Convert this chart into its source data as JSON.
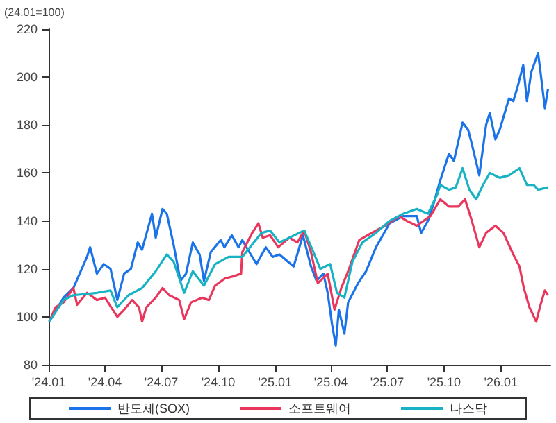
{
  "chart_data": {
    "type": "line",
    "ylabel": "(24.01=100)",
    "xlim": [
      "2024-01-01",
      "2026-03-22"
    ],
    "xticks": [
      {
        "value": "2024-01-01",
        "label": "'24.01"
      },
      {
        "value": "2024-04-01",
        "label": "'24.04"
      },
      {
        "value": "2024-07-01",
        "label": "'24.07"
      },
      {
        "value": "2024-10-01",
        "label": "'24.10"
      },
      {
        "value": "2025-01-01",
        "label": "'25.01"
      },
      {
        "value": "2025-04-01",
        "label": "'25.04"
      },
      {
        "value": "2025-07-01",
        "label": "'25.07"
      },
      {
        "value": "2025-10-01",
        "label": "'25.10"
      },
      {
        "value": "2026-01-01",
        "label": "'26.01"
      }
    ],
    "ylim": [
      80,
      220
    ],
    "yticks": [
      80,
      100,
      120,
      140,
      160,
      180,
      200,
      220
    ],
    "grid": false,
    "legend": "bottom",
    "marker": "none",
    "line_style": "solid",
    "series": [
      {
        "name": "반도체(SOX)",
        "color": "#1a73e8",
        "x": [
          "2024-01-02",
          "2024-01-25",
          "2024-02-10",
          "2024-03-03",
          "2024-03-08",
          "2024-03-19",
          "2024-03-30",
          "2024-04-10",
          "2024-04-21",
          "2024-05-02",
          "2024-05-13",
          "2024-05-24",
          "2024-05-31",
          "2024-06-16",
          "2024-06-22",
          "2024-07-03",
          "2024-07-10",
          "2024-07-21",
          "2024-08-01",
          "2024-08-10",
          "2024-08-21",
          "2024-09-01",
          "2024-09-08",
          "2024-09-19",
          "2024-10-05",
          "2024-10-11",
          "2024-10-23",
          "2024-11-03",
          "2024-11-09",
          "2024-11-18",
          "2024-12-02",
          "2024-12-17",
          "2024-12-28",
          "2025-01-08",
          "2025-01-31",
          "2025-02-15",
          "2025-02-28",
          "2025-03-09",
          "2025-03-20",
          "2025-03-27",
          "2025-04-03",
          "2025-04-09",
          "2025-04-14",
          "2025-04-23",
          "2025-04-29",
          "2025-05-15",
          "2025-05-28",
          "2025-06-13",
          "2025-07-05",
          "2025-07-27",
          "2025-08-18",
          "2025-08-25",
          "2025-09-05",
          "2025-09-14",
          "2025-09-25",
          "2025-10-09",
          "2025-10-17",
          "2025-10-31",
          "2025-11-09",
          "2025-11-15",
          "2025-11-27",
          "2025-12-08",
          "2025-12-14",
          "2025-12-23",
          "2025-12-30",
          "2026-01-14",
          "2026-01-21",
          "2026-01-28",
          "2026-02-06",
          "2026-02-12",
          "2026-02-19",
          "2026-03-02",
          "2026-03-06",
          "2026-03-13",
          "2026-03-18"
        ],
        "values": [
          98,
          108,
          112,
          125,
          129,
          118,
          122,
          120,
          107,
          118,
          120,
          131,
          128,
          143,
          133,
          145,
          143,
          130,
          115,
          118,
          131,
          126,
          115,
          127,
          132,
          129,
          134,
          129,
          132,
          128,
          122,
          129,
          125,
          126,
          121,
          134,
          121,
          115,
          118,
          110,
          97,
          88,
          103,
          93,
          106,
          114,
          119,
          129,
          139,
          142,
          142,
          135,
          140,
          147,
          157,
          168,
          165,
          181,
          178,
          172,
          159,
          180,
          185,
          174,
          178,
          191,
          190,
          196,
          205,
          190,
          202,
          210,
          202,
          187,
          195
        ]
      },
      {
        "name": "소프트웨어",
        "color": "#e8365d",
        "x": [
          "2024-01-02",
          "2024-01-12",
          "2024-01-25",
          "2024-02-10",
          "2024-02-16",
          "2024-03-03",
          "2024-03-19",
          "2024-04-01",
          "2024-04-21",
          "2024-05-02",
          "2024-05-15",
          "2024-05-26",
          "2024-05-31",
          "2024-06-07",
          "2024-06-22",
          "2024-07-03",
          "2024-07-14",
          "2024-07-30",
          "2024-08-07",
          "2024-08-18",
          "2024-09-05",
          "2024-09-16",
          "2024-09-26",
          "2024-10-12",
          "2024-10-27",
          "2024-11-07",
          "2024-11-09",
          "2024-11-25",
          "2024-12-05",
          "2024-12-12",
          "2024-12-24",
          "2025-01-06",
          "2025-01-24",
          "2025-02-06",
          "2025-02-17",
          "2025-02-28",
          "2025-03-11",
          "2025-03-27",
          "2025-04-07",
          "2025-04-18",
          "2025-04-29",
          "2025-05-17",
          "2025-06-06",
          "2025-06-28",
          "2025-07-20",
          "2025-08-02",
          "2025-08-18",
          "2025-09-09",
          "2025-09-25",
          "2025-10-09",
          "2025-10-24",
          "2025-11-04",
          "2025-11-15",
          "2025-11-27",
          "2025-12-08",
          "2025-12-23",
          "2026-01-05",
          "2026-01-21",
          "2026-01-31",
          "2026-02-07",
          "2026-02-16",
          "2026-02-27",
          "2026-03-06",
          "2026-03-13",
          "2026-03-18"
        ],
        "values": [
          98,
          104,
          106,
          112,
          105,
          110,
          107,
          108,
          100,
          103,
          107,
          104,
          98,
          104,
          108,
          112,
          109,
          107,
          99,
          106,
          108,
          107,
          113,
          116,
          117,
          118,
          127,
          135,
          139,
          133,
          134,
          129,
          133,
          131,
          136,
          127,
          114,
          118,
          103,
          112,
          119,
          132,
          135,
          138,
          142,
          140,
          138,
          142,
          149,
          146,
          146,
          149,
          140,
          129,
          135,
          138,
          135,
          126,
          121,
          112,
          104,
          98,
          105,
          111,
          109
        ]
      },
      {
        "name": "나스닥",
        "color": "#17b3c4",
        "x": [
          "2024-01-02",
          "2024-01-25",
          "2024-02-10",
          "2024-03-19",
          "2024-04-10",
          "2024-04-21",
          "2024-05-09",
          "2024-05-31",
          "2024-06-22",
          "2024-07-10",
          "2024-07-21",
          "2024-08-07",
          "2024-08-21",
          "2024-09-08",
          "2024-09-26",
          "2024-10-18",
          "2024-11-09",
          "2024-12-10",
          "2024-12-24",
          "2025-01-08",
          "2025-02-17",
          "2025-03-04",
          "2025-03-15",
          "2025-03-31",
          "2025-04-11",
          "2025-04-23",
          "2025-05-06",
          "2025-05-22",
          "2025-06-13",
          "2025-07-05",
          "2025-07-27",
          "2025-08-18",
          "2025-09-05",
          "2025-09-20",
          "2025-09-25",
          "2025-10-09",
          "2025-10-20",
          "2025-10-31",
          "2025-11-11",
          "2025-11-22",
          "2025-12-03",
          "2025-12-14",
          "2025-12-30",
          "2026-01-14",
          "2026-01-31",
          "2026-02-12",
          "2026-02-23",
          "2026-03-02",
          "2026-03-18"
        ],
        "values": [
          98,
          107,
          109,
          110,
          111,
          104,
          109,
          112,
          119,
          126,
          123,
          110,
          119,
          113,
          122,
          125,
          125,
          135,
          136,
          131,
          136,
          127,
          120,
          122,
          110,
          108,
          123,
          131,
          135,
          140,
          143,
          145,
          143,
          151,
          155,
          153,
          154,
          162,
          153,
          149,
          155,
          160,
          158,
          159,
          162,
          155,
          155,
          153,
          154
        ]
      }
    ]
  }
}
